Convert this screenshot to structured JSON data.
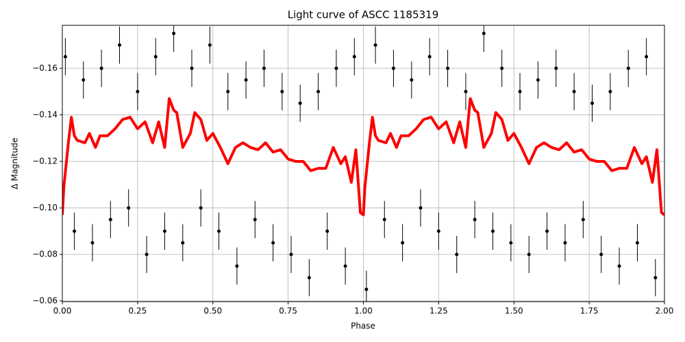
{
  "chart_data": {
    "type": "scatter",
    "title": "Light curve of ASCC 1185319",
    "x_label": "Phase",
    "y_label": "Δ Magnitude",
    "xlim": [
      0,
      2
    ],
    "ylim": [
      -0.1785,
      -0.0597
    ],
    "y_inverted": true,
    "grid": true,
    "xticks": [
      {
        "value": 0,
        "label": "0.00"
      },
      {
        "value": 0.25,
        "label": "0.25"
      },
      {
        "value": 0.5,
        "label": "0.50"
      },
      {
        "value": 0.75,
        "label": "0.75"
      },
      {
        "value": 1,
        "label": "1.00"
      },
      {
        "value": 1.25,
        "label": "1.25"
      },
      {
        "value": 1.5,
        "label": "1.50"
      },
      {
        "value": 1.75,
        "label": "1.75"
      },
      {
        "value": 2,
        "label": "2.00"
      }
    ],
    "yticks": [
      {
        "value": -0.16,
        "label": "−0.16"
      },
      {
        "value": -0.14,
        "label": "−0.14"
      },
      {
        "value": -0.12,
        "label": "−0.12"
      },
      {
        "value": -0.1,
        "label": "−0.10"
      },
      {
        "value": -0.08,
        "label": "−0.08"
      },
      {
        "value": -0.06,
        "label": "−0.06"
      }
    ],
    "series": [
      {
        "type": "errorbar",
        "color": "#000000",
        "yerr": 0.008,
        "x": [
          0.01,
          0.04,
          0.07,
          0.1,
          0.13,
          0.16,
          0.19,
          0.22,
          0.25,
          0.28,
          0.31,
          0.34,
          0.37,
          0.4,
          0.43,
          0.46,
          0.49,
          0.52,
          0.55,
          0.58,
          0.61,
          0.64,
          0.67,
          0.7,
          0.73,
          0.76,
          0.79,
          0.82,
          0.85,
          0.88,
          0.91,
          0.94,
          0.97,
          1.01,
          1.04,
          1.07,
          1.1,
          1.13,
          1.16,
          1.19,
          1.22,
          1.25,
          1.28,
          1.31,
          1.34,
          1.37,
          1.4,
          1.43,
          1.46,
          1.49,
          1.52,
          1.55,
          1.58,
          1.61,
          1.64,
          1.67,
          1.7,
          1.73,
          1.76,
          1.79,
          1.82,
          1.85,
          1.88,
          1.91,
          1.94,
          1.97
        ],
        "values": [
          -0.165,
          -0.09,
          -0.155,
          -0.085,
          -0.16,
          -0.095,
          -0.17,
          -0.1,
          -0.15,
          -0.08,
          -0.165,
          -0.09,
          -0.175,
          -0.085,
          -0.16,
          -0.1,
          -0.17,
          -0.09,
          -0.15,
          -0.075,
          -0.155,
          -0.095,
          -0.16,
          -0.085,
          -0.15,
          -0.08,
          -0.145,
          -0.07,
          -0.15,
          -0.09,
          -0.16,
          -0.075,
          -0.165,
          -0.065,
          -0.17,
          -0.095,
          -0.16,
          -0.085,
          -0.155,
          -0.1,
          -0.165,
          -0.09,
          -0.16,
          -0.08,
          -0.15,
          -0.095,
          -0.175,
          -0.09,
          -0.16,
          -0.085,
          -0.15,
          -0.08,
          -0.155,
          -0.09,
          -0.16,
          -0.085,
          -0.15,
          -0.095,
          -0.145,
          -0.08,
          -0.15,
          -0.075,
          -0.16,
          -0.085,
          -0.165,
          -0.07
        ]
      },
      {
        "type": "line",
        "color": "#ff0000",
        "x": [
          0,
          0.005,
          0.02,
          0.03,
          0.04,
          0.05,
          0.075,
          0.09,
          0.11,
          0.125,
          0.15,
          0.175,
          0.2,
          0.225,
          0.25,
          0.275,
          0.3,
          0.32,
          0.34,
          0.355,
          0.37,
          0.38,
          0.4,
          0.425,
          0.44,
          0.46,
          0.48,
          0.5,
          0.525,
          0.55,
          0.575,
          0.6,
          0.625,
          0.65,
          0.675,
          0.7,
          0.725,
          0.75,
          0.775,
          0.8,
          0.825,
          0.85,
          0.875,
          0.9,
          0.925,
          0.94,
          0.96,
          0.975,
          0.99,
          1,
          1.005,
          1.02,
          1.03,
          1.04,
          1.05,
          1.075,
          1.09,
          1.11,
          1.125,
          1.15,
          1.175,
          1.2,
          1.225,
          1.25,
          1.275,
          1.3,
          1.32,
          1.34,
          1.355,
          1.37,
          1.38,
          1.4,
          1.425,
          1.44,
          1.46,
          1.48,
          1.5,
          1.525,
          1.55,
          1.575,
          1.6,
          1.625,
          1.65,
          1.675,
          1.7,
          1.725,
          1.75,
          1.775,
          1.8,
          1.825,
          1.85,
          1.875,
          1.9,
          1.925,
          1.94,
          1.96,
          1.975,
          1.99,
          2
        ],
        "values": [
          -0.097,
          -0.109,
          -0.128,
          -0.139,
          -0.131,
          -0.129,
          -0.128,
          -0.132,
          -0.126,
          -0.131,
          -0.131,
          -0.134,
          -0.138,
          -0.139,
          -0.134,
          -0.137,
          -0.128,
          -0.137,
          -0.126,
          -0.147,
          -0.142,
          -0.141,
          -0.126,
          -0.132,
          -0.141,
          -0.138,
          -0.129,
          -0.132,
          -0.126,
          -0.119,
          -0.126,
          -0.128,
          -0.126,
          -0.125,
          -0.128,
          -0.124,
          -0.125,
          -0.121,
          -0.12,
          -0.12,
          -0.116,
          -0.117,
          -0.117,
          -0.126,
          -0.119,
          -0.122,
          -0.111,
          -0.125,
          -0.098,
          -0.097,
          -0.109,
          -0.128,
          -0.139,
          -0.131,
          -0.129,
          -0.128,
          -0.132,
          -0.126,
          -0.131,
          -0.131,
          -0.134,
          -0.138,
          -0.139,
          -0.134,
          -0.137,
          -0.128,
          -0.137,
          -0.126,
          -0.147,
          -0.142,
          -0.141,
          -0.126,
          -0.132,
          -0.141,
          -0.138,
          -0.129,
          -0.132,
          -0.126,
          -0.119,
          -0.126,
          -0.128,
          -0.126,
          -0.125,
          -0.128,
          -0.124,
          -0.125,
          -0.121,
          -0.12,
          -0.12,
          -0.116,
          -0.117,
          -0.117,
          -0.126,
          -0.119,
          -0.122,
          -0.111,
          -0.125,
          -0.098,
          -0.097
        ]
      }
    ]
  }
}
